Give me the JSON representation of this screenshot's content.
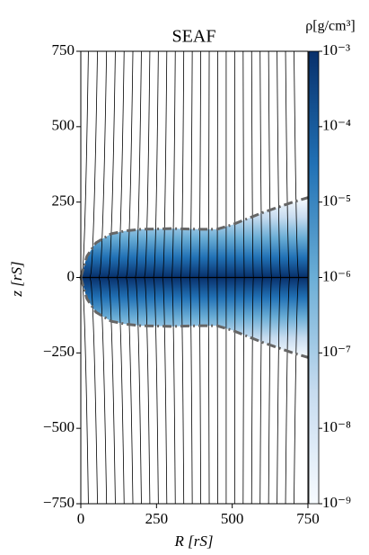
{
  "chart_data": {
    "type": "density_map",
    "title": "SEAF",
    "x_label": "R [rS]",
    "y_label": "z [rS]",
    "xlim": [
      0,
      750
    ],
    "ylim": [
      -750,
      750
    ],
    "xticks": [
      0,
      250,
      500,
      750
    ],
    "yticks": [
      {
        "value": -750,
        "label": "−750"
      },
      {
        "value": -500,
        "label": "−500"
      },
      {
        "value": -250,
        "label": "−250"
      },
      0,
      250,
      500,
      750
    ],
    "colorbar": {
      "label": "ρ[g/cm³]",
      "log": true,
      "clim": [
        1e-09,
        0.001
      ],
      "ticks": [
        {
          "value": 1e-09,
          "label": "10⁻⁹"
        },
        {
          "value": 1e-08,
          "label": "10⁻⁸"
        },
        {
          "value": 1e-07,
          "label": "10⁻⁷"
        },
        {
          "value": 1e-06,
          "label": "10⁻⁶"
        },
        {
          "value": 1e-05,
          "label": "10⁻⁵"
        },
        {
          "value": 0.0001,
          "label": "10⁻⁴"
        },
        {
          "value": 0.001,
          "label": "10⁻³"
        }
      ],
      "colors": [
        "#f7fbff",
        "#c6dbef",
        "#6baed6",
        "#2171b5",
        "#08306b"
      ]
    },
    "surface": {
      "color": "#666666",
      "R": [
        0,
        20,
        50,
        100,
        150,
        200,
        300,
        400,
        450,
        500,
        600,
        700,
        750
      ],
      "upper_z": [
        0,
        70,
        115,
        145,
        155,
        160,
        162,
        160,
        160,
        175,
        215,
        250,
        265
      ],
      "lower_z": [
        0,
        -70,
        -115,
        -145,
        -155,
        -160,
        -162,
        -160,
        -160,
        -175,
        -215,
        -250,
        -265
      ]
    },
    "field_lines": {
      "color": "#000000",
      "midplane_R": [
        2,
        30,
        60,
        90,
        120,
        150,
        180,
        210,
        240,
        270,
        300,
        330,
        360,
        390,
        420,
        450,
        480,
        510,
        540,
        570,
        600,
        630,
        660,
        690,
        720
      ],
      "edge_R": [
        25,
        55,
        85,
        114,
        143,
        172,
        200,
        228,
        256,
        284,
        312,
        340,
        368,
        396,
        424,
        452,
        480,
        508,
        536,
        564,
        592,
        620,
        648,
        676,
        704
      ]
    }
  }
}
